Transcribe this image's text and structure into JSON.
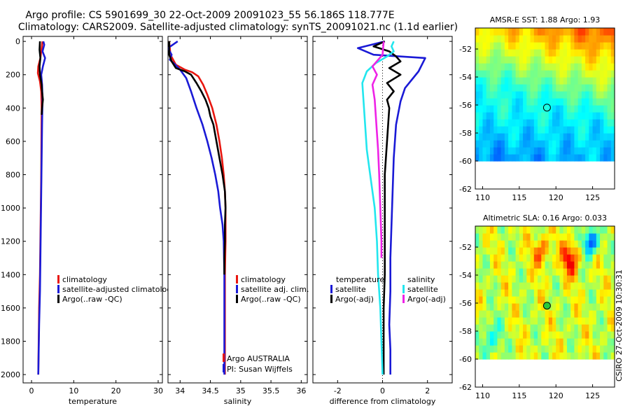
{
  "header": {
    "line1": "Argo profile: CS 5901699_30 22-Oct-2009 20091023_55 56.186S 118.777E",
    "line2": "Climatology: CARS2009. Satellite-adjusted climatology: synTS_20091021.nc (1.1d earlier)"
  },
  "credit": "CSIRO 27-Oct-2009 10:30:31",
  "colors": {
    "climatology": "#e8160f",
    "satellite": "#1a1ad6",
    "argo": "#000000",
    "satellite_salinity": "#22e6ee",
    "argo_salinity": "#ee22e6"
  },
  "chart_data": [
    {
      "type": "line",
      "id": "temperature",
      "xlabel": "temperature",
      "ylabel": "",
      "xlim": [
        -2,
        31
      ],
      "ylim": [
        2050,
        -30
      ],
      "xticks": [
        0,
        10,
        20,
        30
      ],
      "yticks": [
        0,
        200,
        400,
        600,
        800,
        1000,
        1200,
        1400,
        1600,
        1800,
        2000
      ],
      "legend": [
        "climatology",
        "satellite-adjusted climatology",
        "Argo(..raw -QC)"
      ],
      "series": [
        {
          "name": "climatology",
          "color_key": "climatology",
          "points": [
            [
              2.6,
              0
            ],
            [
              2.4,
              40
            ],
            [
              2.1,
              100
            ],
            [
              1.6,
              150
            ],
            [
              1.5,
              190
            ],
            [
              2.0,
              240
            ],
            [
              2.3,
              300
            ],
            [
              2.4,
              400
            ],
            [
              2.35,
              600
            ],
            [
              2.3,
              800
            ],
            [
              2.2,
              1000
            ],
            [
              2.1,
              1200
            ],
            [
              2.0,
              1400
            ],
            [
              1.8,
              1600
            ],
            [
              1.7,
              1800
            ],
            [
              1.6,
              2000
            ]
          ]
        },
        {
          "name": "satellite-adjusted climatology",
          "color_key": "satellite",
          "points": [
            [
              2.8,
              0
            ],
            [
              3.0,
              20
            ],
            [
              2.6,
              60
            ],
            [
              3.2,
              100
            ],
            [
              2.7,
              150
            ],
            [
              2.3,
              200
            ],
            [
              2.5,
              260
            ],
            [
              2.6,
              350
            ],
            [
              2.5,
              500
            ],
            [
              2.4,
              700
            ],
            [
              2.3,
              900
            ],
            [
              2.2,
              1100
            ],
            [
              2.1,
              1300
            ],
            [
              2.0,
              1500
            ],
            [
              1.8,
              1700
            ],
            [
              1.7,
              1850
            ],
            [
              1.6,
              2000
            ]
          ]
        },
        {
          "name": "Argo(..raw -QC)",
          "color_key": "argo",
          "points": [
            [
              2.0,
              0
            ],
            [
              1.9,
              50
            ],
            [
              2.1,
              100
            ],
            [
              1.9,
              150
            ],
            [
              2.0,
              200
            ],
            [
              2.4,
              260
            ],
            [
              2.5,
              300
            ],
            [
              2.7,
              350
            ],
            [
              2.5,
              400
            ],
            [
              2.4,
              440
            ]
          ]
        }
      ]
    },
    {
      "type": "line",
      "id": "salinity",
      "xlabel": "salinity",
      "ylabel": "",
      "xlim": [
        33.8,
        36.1
      ],
      "ylim": [
        2050,
        -30
      ],
      "xticks": [
        34,
        34.5,
        35,
        35.5,
        36
      ],
      "yticks": [
        0,
        200,
        400,
        600,
        800,
        1000,
        1200,
        1400,
        1600,
        1800,
        2000
      ],
      "legend": [
        "climatology",
        "satellite adj. clim.",
        "Argo(..raw -QC)"
      ],
      "annotation": [
        "Argo AUSTRALIA",
        "PI: Susan Wijffels"
      ],
      "series": [
        {
          "name": "climatology",
          "color_key": "climatology",
          "points": [
            [
              33.82,
              0
            ],
            [
              33.84,
              80
            ],
            [
              33.93,
              140
            ],
            [
              34.08,
              170
            ],
            [
              34.2,
              185
            ],
            [
              34.3,
              210
            ],
            [
              34.38,
              260
            ],
            [
              34.45,
              320
            ],
            [
              34.53,
              400
            ],
            [
              34.6,
              500
            ],
            [
              34.65,
              600
            ],
            [
              34.69,
              700
            ],
            [
              34.72,
              800
            ],
            [
              34.74,
              900
            ],
            [
              34.75,
              1000
            ],
            [
              34.75,
              1200
            ],
            [
              34.74,
              1400
            ],
            [
              34.74,
              1600
            ],
            [
              34.74,
              1800
            ],
            [
              34.74,
              2000
            ]
          ]
        },
        {
          "name": "satellite adj. clim.",
          "color_key": "satellite",
          "points": [
            [
              33.96,
              0
            ],
            [
              33.8,
              40
            ],
            [
              33.86,
              80
            ],
            [
              33.83,
              110
            ],
            [
              33.92,
              140
            ],
            [
              34.0,
              170
            ],
            [
              34.1,
              220
            ],
            [
              34.18,
              300
            ],
            [
              34.27,
              400
            ],
            [
              34.37,
              500
            ],
            [
              34.45,
              600
            ],
            [
              34.52,
              700
            ],
            [
              34.58,
              800
            ],
            [
              34.63,
              900
            ],
            [
              34.66,
              1000
            ],
            [
              34.7,
              1100
            ],
            [
              34.72,
              1200
            ],
            [
              34.73,
              1400
            ],
            [
              34.73,
              1600
            ],
            [
              34.73,
              1800
            ],
            [
              34.73,
              2000
            ]
          ]
        },
        {
          "name": "Argo(..raw -QC)",
          "color_key": "argo",
          "points": [
            [
              33.82,
              0
            ],
            [
              33.82,
              80
            ],
            [
              33.86,
              120
            ],
            [
              33.93,
              160
            ],
            [
              34.08,
              180
            ],
            [
              34.18,
              200
            ],
            [
              34.27,
              250
            ],
            [
              34.35,
              300
            ],
            [
              34.42,
              350
            ],
            [
              34.47,
              400
            ],
            [
              34.5,
              450
            ],
            [
              34.55,
              500
            ],
            [
              34.6,
              600
            ],
            [
              34.65,
              700
            ],
            [
              34.7,
              800
            ],
            [
              34.74,
              900
            ],
            [
              34.75,
              1000
            ],
            [
              34.74,
              1100
            ],
            [
              34.74,
              1200
            ],
            [
              34.73,
              1300
            ],
            [
              34.73,
              1400
            ]
          ]
        }
      ]
    },
    {
      "type": "line",
      "id": "difference",
      "xlabel": "difference from climatology",
      "ylabel": "",
      "xlim": [
        -3.1,
        3.1
      ],
      "ylim": [
        2050,
        -30
      ],
      "xticks": [
        -2,
        0,
        2
      ],
      "yticks": [
        0,
        200,
        400,
        600,
        800,
        1000,
        1200,
        1400,
        1600,
        1800,
        2000
      ],
      "legend_groups": {
        "temperature": [
          "satellite",
          "Argo(-adj)"
        ],
        "salinity": [
          "satellite",
          "Argo(-adj)"
        ]
      },
      "series": [
        {
          "name": "temperature satellite",
          "color_key": "satellite",
          "points": [
            [
              0.1,
              0
            ],
            [
              -1.1,
              40
            ],
            [
              -0.4,
              80
            ],
            [
              1.9,
              100
            ],
            [
              1.6,
              180
            ],
            [
              1.0,
              280
            ],
            [
              0.8,
              360
            ],
            [
              0.6,
              500
            ],
            [
              0.5,
              700
            ],
            [
              0.45,
              900
            ],
            [
              0.4,
              1100
            ],
            [
              0.35,
              1300
            ],
            [
              0.35,
              1500
            ],
            [
              0.3,
              1700
            ],
            [
              0.35,
              1850
            ],
            [
              0.35,
              2000
            ]
          ]
        },
        {
          "name": "temperature Argo(-adj)",
          "color_key": "argo",
          "points": [
            [
              0.1,
              0
            ],
            [
              -0.4,
              30
            ],
            [
              0.3,
              60
            ],
            [
              0.6,
              90
            ],
            [
              0.8,
              120
            ],
            [
              0.3,
              160
            ],
            [
              0.8,
              200
            ],
            [
              0.2,
              250
            ],
            [
              0.5,
              300
            ],
            [
              0.2,
              350
            ],
            [
              0.3,
              400
            ],
            [
              0.25,
              500
            ],
            [
              0.2,
              600
            ],
            [
              0.15,
              700
            ],
            [
              0.1,
              800
            ],
            [
              0.1,
              1000
            ],
            [
              0.1,
              1200
            ],
            [
              0.1,
              1400
            ],
            [
              0.05,
              1600
            ],
            [
              0.05,
              1800
            ],
            [
              0.05,
              2000
            ]
          ]
        },
        {
          "name": "salinity satellite",
          "color_key": "satellite_salinity",
          "points": [
            [
              0.5,
              0
            ],
            [
              0.4,
              30
            ],
            [
              0.5,
              60
            ],
            [
              0.2,
              90
            ],
            [
              -0.3,
              130
            ],
            [
              -0.7,
              180
            ],
            [
              -0.9,
              250
            ],
            [
              -0.85,
              350
            ],
            [
              -0.8,
              450
            ],
            [
              -0.75,
              550
            ],
            [
              -0.7,
              650
            ],
            [
              -0.55,
              800
            ],
            [
              -0.35,
              1000
            ],
            [
              -0.25,
              1200
            ],
            [
              -0.2,
              1400
            ],
            [
              -0.1,
              1600
            ],
            [
              -0.05,
              1800
            ],
            [
              0.0,
              2000
            ]
          ]
        },
        {
          "name": "salinity Argo(-adj)",
          "color_key": "argo_salinity",
          "points": [
            [
              0.05,
              0
            ],
            [
              0.0,
              80
            ],
            [
              -0.45,
              150
            ],
            [
              -0.25,
              200
            ],
            [
              -0.45,
              260
            ],
            [
              -0.35,
              350
            ],
            [
              -0.3,
              450
            ],
            [
              -0.25,
              550
            ],
            [
              -0.2,
              650
            ],
            [
              -0.15,
              800
            ],
            [
              -0.1,
              1000
            ],
            [
              -0.05,
              1200
            ],
            [
              -0.05,
              1300
            ]
          ]
        }
      ]
    },
    {
      "type": "heatmap",
      "id": "sst",
      "title": "AMSR-E SST: 1.88 Argo: 1.93",
      "xlim": [
        109,
        128
      ],
      "ylim": [
        -62,
        -50.5
      ],
      "xticks": [
        110,
        115,
        120,
        125
      ],
      "yticks": [
        -52,
        -54,
        -56,
        -58,
        -60,
        -62
      ],
      "marker": [
        118.777,
        -56.186
      ],
      "data_lat_min": -60
    },
    {
      "type": "heatmap",
      "id": "sla",
      "title": "Altimetric SLA: 0.16 Argo: 0.033",
      "xlim": [
        109,
        128
      ],
      "ylim": [
        -62,
        -50.5
      ],
      "xticks": [
        110,
        115,
        120,
        125
      ],
      "yticks": [
        -52,
        -54,
        -56,
        -58,
        -60,
        -62
      ],
      "marker": [
        118.777,
        -56.186
      ],
      "data_lat_min": -60
    }
  ]
}
